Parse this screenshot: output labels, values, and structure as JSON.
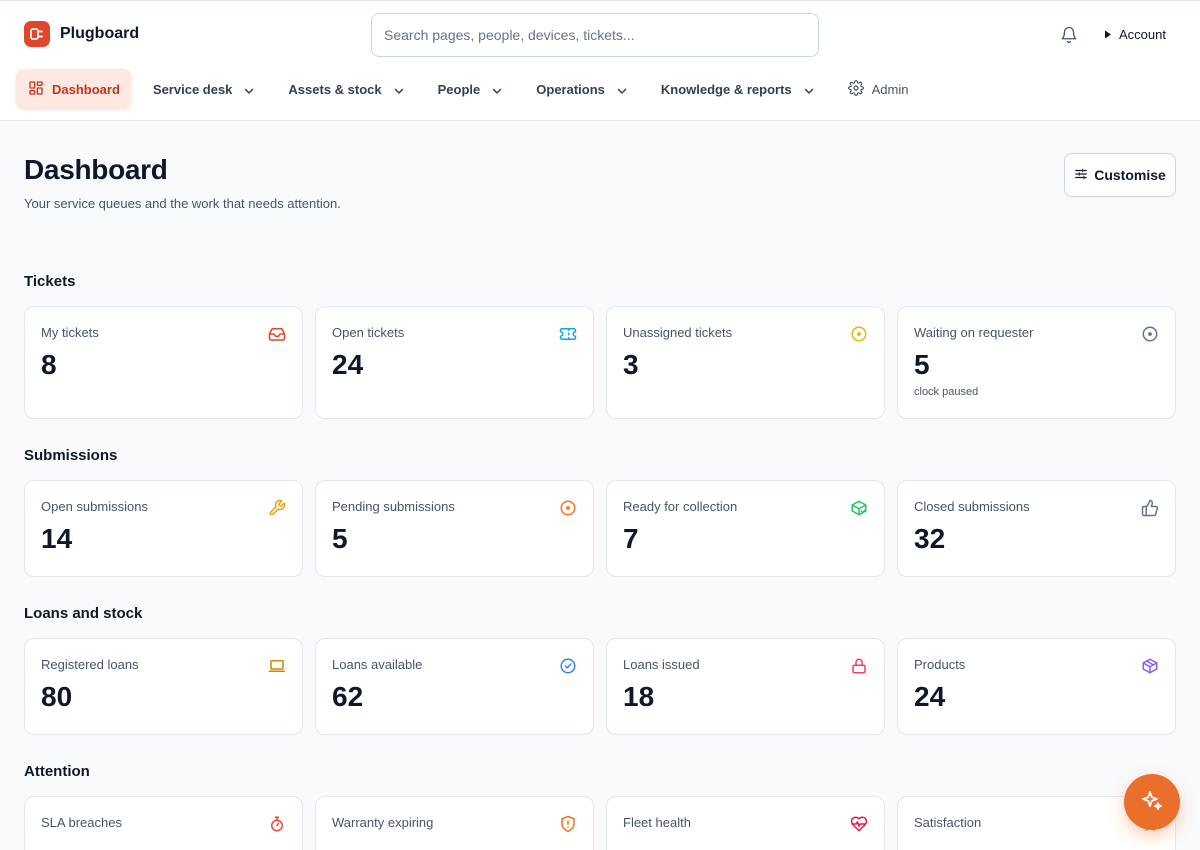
{
  "app": {
    "name": "Plugboard"
  },
  "search": {
    "placeholder": "Search pages, people, devices, tickets..."
  },
  "header": {
    "account_label": "Account"
  },
  "nav": {
    "items": [
      {
        "label": "Dashboard",
        "active": true
      },
      {
        "label": "Service desk",
        "dropdown": true
      },
      {
        "label": "Assets & stock",
        "dropdown": true
      },
      {
        "label": "People",
        "dropdown": true
      },
      {
        "label": "Operations",
        "dropdown": true
      },
      {
        "label": "Knowledge & reports",
        "dropdown": true
      },
      {
        "label": "Admin",
        "dropdown": false
      }
    ]
  },
  "page": {
    "title": "Dashboard",
    "subtitle": "Your service queues and the work that needs attention.",
    "customise_label": "Customise"
  },
  "sections": [
    {
      "title": "Tickets",
      "cards": [
        {
          "label": "My tickets",
          "value": "8",
          "icon": "inbox-icon",
          "color": "#e2452b"
        },
        {
          "label": "Open tickets",
          "value": "24",
          "icon": "ticket-icon",
          "color": "#0ea5e9"
        },
        {
          "label": "Unassigned tickets",
          "value": "3",
          "icon": "circle-dot-icon",
          "color": "#eab308"
        },
        {
          "label": "Waiting on requester",
          "value": "5",
          "note": "clock paused",
          "icon": "circle-dot-icon",
          "color": "#64748b"
        }
      ]
    },
    {
      "title": "Submissions",
      "cards": [
        {
          "label": "Open submissions",
          "value": "14",
          "icon": "wrench-icon",
          "color": "#f59e0b"
        },
        {
          "label": "Pending submissions",
          "value": "5",
          "icon": "circle-dot-icon",
          "color": "#f97316"
        },
        {
          "label": "Ready for collection",
          "value": "7",
          "icon": "package-check-icon",
          "color": "#22c55e"
        },
        {
          "label": "Closed submissions",
          "value": "32",
          "icon": "thumbs-up-icon",
          "color": "#64748b"
        }
      ]
    },
    {
      "title": "Loans and stock",
      "cards": [
        {
          "label": "Registered loans",
          "value": "80",
          "icon": "laptop-icon",
          "color": "#ca8a04"
        },
        {
          "label": "Loans available",
          "value": "62",
          "icon": "circle-check-icon",
          "color": "#3b82f6"
        },
        {
          "label": "Loans issued",
          "value": "18",
          "icon": "lock-icon",
          "color": "#f43f5e"
        },
        {
          "label": "Products",
          "value": "24",
          "icon": "box-icon",
          "color": "#8b5cf6"
        }
      ]
    },
    {
      "title": "Attention",
      "cards": [
        {
          "label": "SLA breaches",
          "icon": "timer-icon",
          "color": "#ef4444"
        },
        {
          "label": "Warranty expiring",
          "icon": "shield-alert-icon",
          "color": "#f97316"
        },
        {
          "label": "Fleet health",
          "icon": "heart-pulse-icon",
          "color": "#e11d48"
        },
        {
          "label": "Satisfaction",
          "icon": "star-icon",
          "color": "#f59e0b"
        }
      ]
    }
  ],
  "colors": {
    "accent": "#e2452b",
    "fab": "#ea6f2a",
    "background": "#f8fafc"
  },
  "fab": {
    "icon": "sparkles-icon"
  }
}
